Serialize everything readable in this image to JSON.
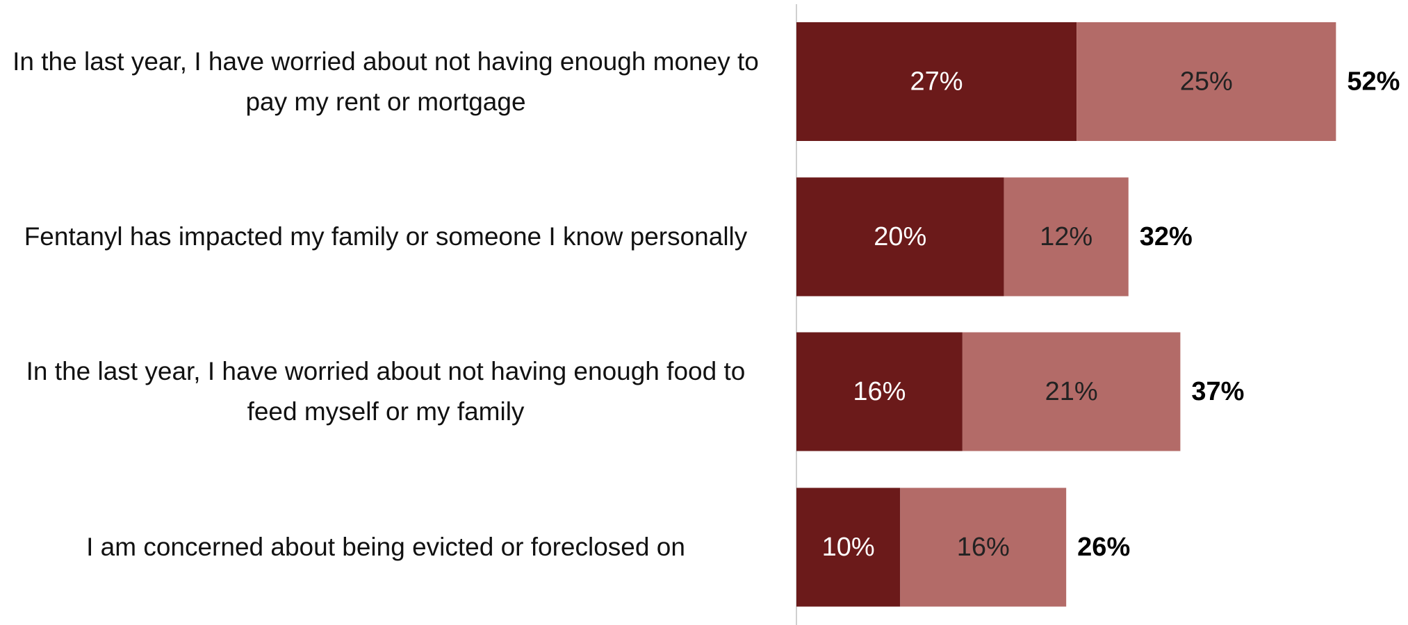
{
  "chart_data": {
    "type": "stacked-bar-horizontal",
    "categories": [
      "In the last year, I have worried about not having enough money to pay my rent or mortgage",
      "Fentanyl has impacted my family or someone I know personally",
      "In the last year, I have worried about not having enough food to feed myself or my family",
      "I am concerned about being evicted or foreclosed on"
    ],
    "series": [
      {
        "color": "#6b1a1a",
        "label_color": "#ffffff",
        "values": [
          27,
          20,
          16,
          10
        ],
        "value_labels": [
          "27%",
          "20%",
          "16%",
          "10%"
        ]
      },
      {
        "color": "#b36b68",
        "label_color": "#222222",
        "values": [
          25,
          12,
          21,
          16
        ],
        "value_labels": [
          "25%",
          "12%",
          "21%",
          "16%"
        ]
      }
    ],
    "totals": {
      "values": [
        52,
        32,
        37,
        26
      ],
      "value_labels": [
        "52%",
        "32%",
        "37%",
        "26%"
      ]
    }
  }
}
